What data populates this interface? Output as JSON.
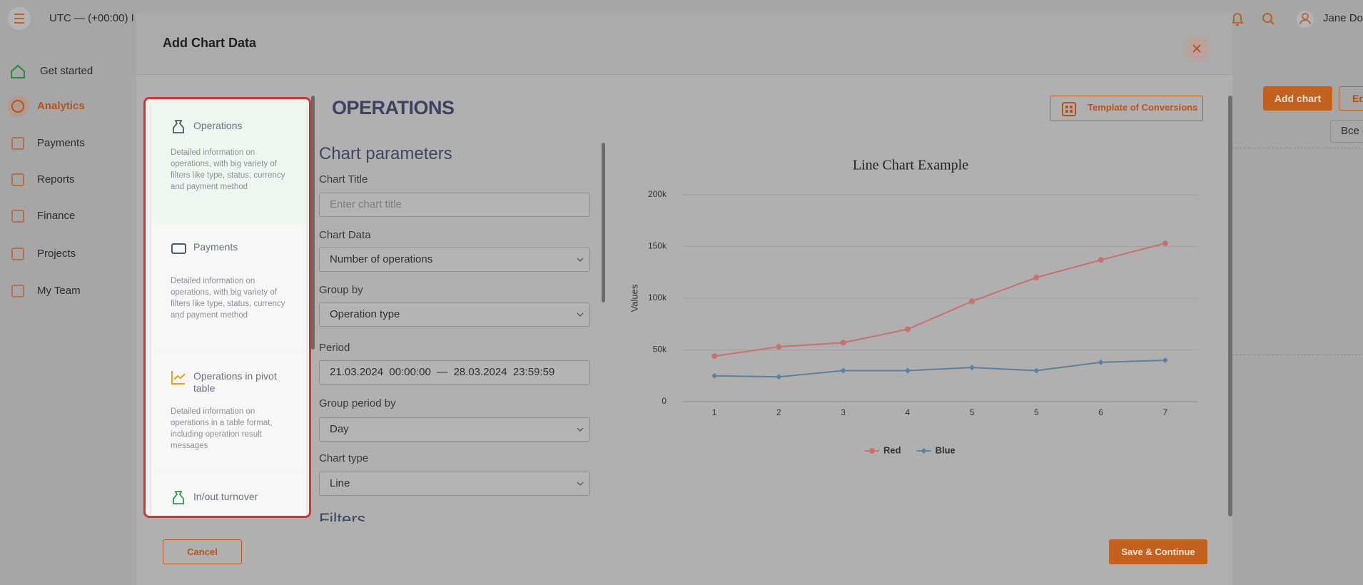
{
  "topbar": {
    "timezone": "UTC — (+00:00) I",
    "user": "Jane Do"
  },
  "sidebar": {
    "items": [
      "Get started",
      "Analytics",
      "Payments",
      "Reports",
      "Finance",
      "Projects",
      "My Team"
    ]
  },
  "background": {
    "add_button": "Add chart",
    "edit_button": "Ed",
    "select": "Все с"
  },
  "modal": {
    "title": "Add Chart Data",
    "cards": [
      {
        "title": "Operations",
        "description": "Detailed information on operations, with big variety of filters like type, status, currency and payment method"
      },
      {
        "title": "Payments",
        "description": "Detailed information on operations, with big variety of filters like type, status, currency and payment method"
      },
      {
        "title": "Operations in pivot table",
        "description": "Detailed information on operations in a table format, including operation result messages"
      },
      {
        "title": "In/out turnover"
      }
    ],
    "section_title": "OPERATIONS",
    "template_button": "Template of Conversions",
    "form": {
      "heading": "Chart parameters",
      "fields": [
        {
          "label": "Chart Title",
          "placeholder": "Enter chart title"
        },
        {
          "label": "Chart Data",
          "value": "Number of operations"
        },
        {
          "label": "Group by",
          "value": "Operation type"
        },
        {
          "label": "Period",
          "value": "21.03.2024  00:00:00  —  28.03.2024  23:59:59"
        },
        {
          "label": "Group period by",
          "value": "Day"
        },
        {
          "label": "Chart type",
          "value": "Line"
        }
      ],
      "next_heading": "Filters"
    },
    "buttons": {
      "cancel": "Cancel",
      "save": "Save & Continue"
    }
  },
  "chart_data": {
    "type": "line",
    "title": "Line Chart Example",
    "y_label": "Values",
    "categories": [
      "1",
      "2",
      "3",
      "4",
      "5",
      "5",
      "6",
      "7"
    ],
    "series": [
      {
        "name": "Red",
        "color": "#c9716d",
        "marker": "circle",
        "values": [
          44000,
          53000,
          57000,
          70000,
          97000,
          120000,
          137000,
          153000
        ]
      },
      {
        "name": "Blue",
        "color": "#5b819c",
        "marker": "diamond",
        "values": [
          25000,
          24000,
          30000,
          30000,
          33000,
          30000,
          38000,
          40000
        ]
      }
    ],
    "ylim": [
      0,
      200000
    ],
    "yticks": [
      0,
      {
        "value": 50000,
        "label": "50k"
      },
      {
        "value": 100000,
        "label": "100k"
      },
      {
        "value": 150000,
        "label": "150k"
      },
      {
        "value": 200000,
        "label": "200k"
      }
    ],
    "grid": true,
    "legend": "bottom"
  }
}
